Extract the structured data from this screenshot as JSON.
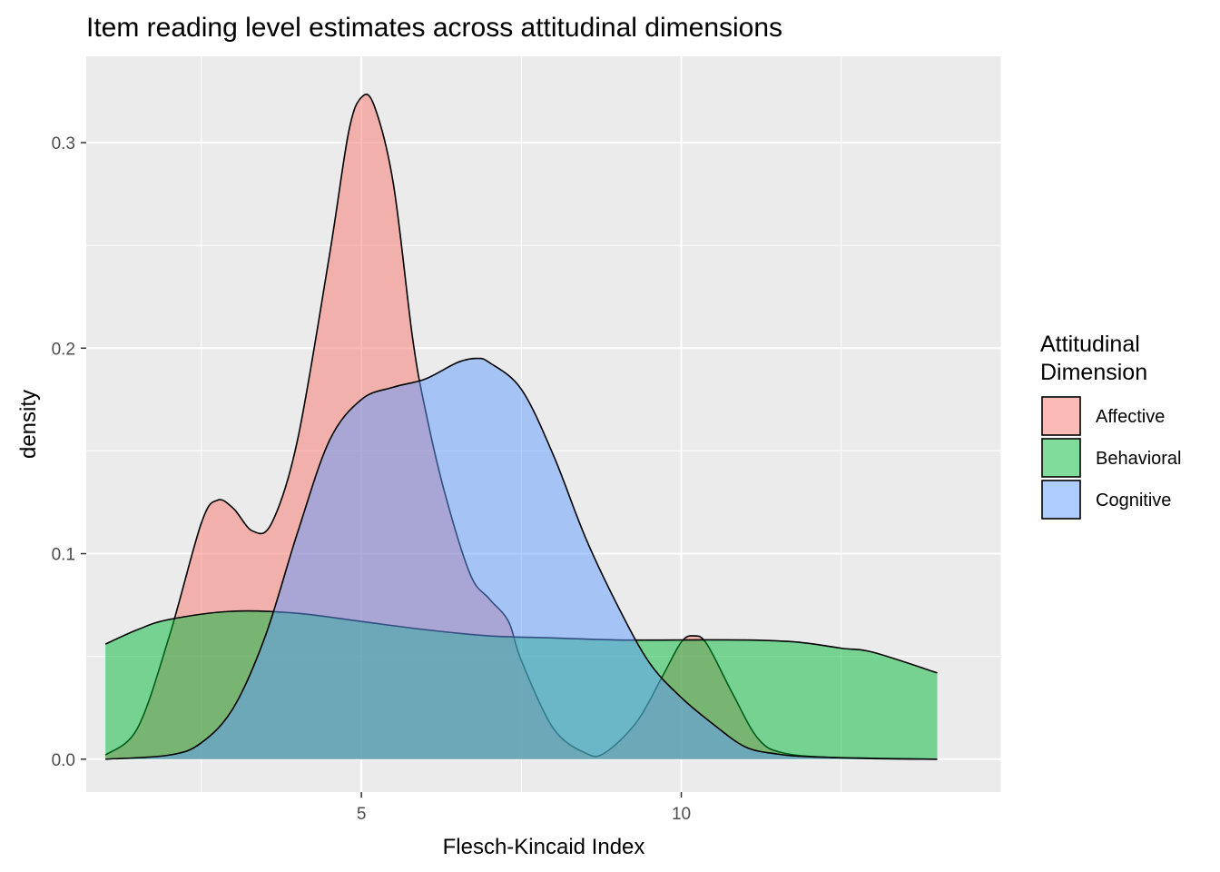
{
  "chart_data": {
    "type": "area",
    "subtype": "density",
    "title": "Item reading level estimates across attitudinal dimensions",
    "xlabel": "Flesch-Kincaid Index",
    "ylabel": "density",
    "xlim": [
      0.7,
      15.0
    ],
    "ylim": [
      -0.016,
      0.342
    ],
    "x_ticks": [
      5,
      10
    ],
    "y_ticks": [
      0.0,
      0.1,
      0.2,
      0.3
    ],
    "y_tick_labels": [
      "0.0",
      "0.1",
      "0.2",
      "0.3"
    ],
    "grid": true,
    "legend": {
      "title_lines": [
        "Attitudinal",
        "Dimension"
      ],
      "position": "right"
    },
    "series": [
      {
        "name": "Affective",
        "color": "#F8766D",
        "points": [
          [
            1.0,
            0.002
          ],
          [
            1.5,
            0.015
          ],
          [
            2.0,
            0.06
          ],
          [
            2.5,
            0.115
          ],
          [
            2.75,
            0.126
          ],
          [
            3.0,
            0.122
          ],
          [
            3.3,
            0.111
          ],
          [
            3.6,
            0.115
          ],
          [
            4.0,
            0.155
          ],
          [
            4.5,
            0.245
          ],
          [
            4.8,
            0.305
          ],
          [
            5.0,
            0.322
          ],
          [
            5.2,
            0.318
          ],
          [
            5.5,
            0.28
          ],
          [
            5.8,
            0.205
          ],
          [
            6.0,
            0.17
          ],
          [
            6.3,
            0.13
          ],
          [
            6.7,
            0.09
          ],
          [
            7.0,
            0.078
          ],
          [
            7.3,
            0.067
          ],
          [
            7.5,
            0.048
          ],
          [
            8.0,
            0.015
          ],
          [
            8.5,
            0.003
          ],
          [
            8.8,
            0.003
          ],
          [
            9.3,
            0.018
          ],
          [
            9.7,
            0.04
          ],
          [
            10.0,
            0.057
          ],
          [
            10.2,
            0.06
          ],
          [
            10.4,
            0.056
          ],
          [
            10.8,
            0.032
          ],
          [
            11.2,
            0.01
          ],
          [
            11.6,
            0.003
          ],
          [
            12.5,
            0.0006
          ],
          [
            14.0,
            0.0
          ]
        ]
      },
      {
        "name": "Behavioral",
        "color": "#00BA38",
        "points": [
          [
            1.0,
            0.056
          ],
          [
            1.5,
            0.063
          ],
          [
            2.0,
            0.068
          ],
          [
            3.0,
            0.072
          ],
          [
            4.0,
            0.071
          ],
          [
            5.0,
            0.067
          ],
          [
            6.0,
            0.063
          ],
          [
            7.0,
            0.06
          ],
          [
            8.0,
            0.059
          ],
          [
            9.0,
            0.058
          ],
          [
            10.0,
            0.058
          ],
          [
            11.0,
            0.058
          ],
          [
            11.8,
            0.057
          ],
          [
            12.5,
            0.054
          ],
          [
            13.0,
            0.052
          ],
          [
            14.0,
            0.042
          ]
        ]
      },
      {
        "name": "Cognitive",
        "color": "#619CFF",
        "points": [
          [
            1.0,
            0.0
          ],
          [
            2.0,
            0.002
          ],
          [
            2.5,
            0.008
          ],
          [
            3.0,
            0.025
          ],
          [
            3.5,
            0.06
          ],
          [
            4.0,
            0.11
          ],
          [
            4.5,
            0.155
          ],
          [
            5.0,
            0.175
          ],
          [
            5.5,
            0.181
          ],
          [
            6.0,
            0.185
          ],
          [
            6.5,
            0.193
          ],
          [
            6.8,
            0.195
          ],
          [
            7.0,
            0.193
          ],
          [
            7.5,
            0.18
          ],
          [
            8.0,
            0.148
          ],
          [
            8.5,
            0.108
          ],
          [
            9.0,
            0.075
          ],
          [
            9.5,
            0.047
          ],
          [
            10.0,
            0.03
          ],
          [
            10.5,
            0.017
          ],
          [
            11.0,
            0.006
          ],
          [
            11.5,
            0.0025
          ],
          [
            12.0,
            0.0012
          ],
          [
            13.0,
            0.0004
          ],
          [
            14.0,
            0.0
          ]
        ]
      }
    ]
  }
}
